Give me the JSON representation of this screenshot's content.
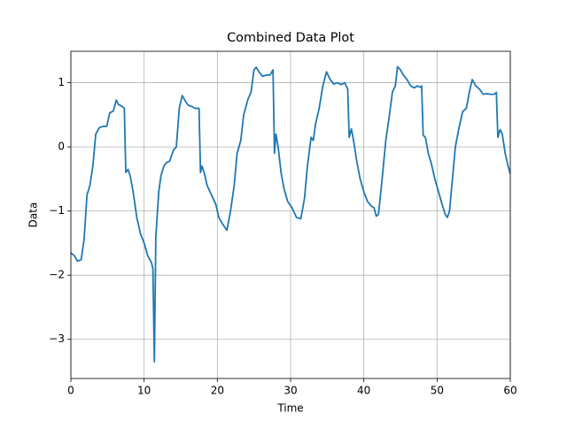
{
  "chart_data": {
    "type": "line",
    "title": "Combined Data Plot",
    "xlabel": "Time",
    "ylabel": "Data",
    "xlim": [
      0,
      60
    ],
    "ylim": [
      -3.61,
      1.49
    ],
    "xticks": [
      0,
      10,
      20,
      30,
      40,
      50,
      60
    ],
    "yticks": [
      {
        "value": -3,
        "label": "−3"
      },
      {
        "value": -2,
        "label": "−2"
      },
      {
        "value": -1,
        "label": "−1"
      },
      0,
      1
    ],
    "grid": true,
    "series": [
      {
        "color": "#1f77b4",
        "x": [
          0,
          0.5,
          0.9,
          1.4,
          1.8,
          2.2,
          2.6,
          3,
          3.4,
          3.9,
          4.4,
          4.9,
          5.3,
          5.8,
          6.2,
          6.5,
          7,
          7.3,
          7.5,
          7.8,
          8.1,
          8.5,
          9,
          9.5,
          10,
          10.5,
          11,
          11.2,
          11.4,
          11.6,
          12,
          12.3,
          12.7,
          13,
          13.5,
          14,
          14.4,
          14.8,
          15.2,
          15.6,
          16,
          16.5,
          17,
          17.5,
          17.7,
          17.9,
          18.2,
          18.6,
          19.2,
          19.8,
          20.2,
          20.7,
          21.3,
          21.8,
          22.3,
          22.7,
          23.2,
          23.6,
          24.2,
          24.6,
          25,
          25.3,
          25.8,
          26.2,
          26.7,
          27.2,
          27.6,
          27.8,
          28,
          28.3,
          28.7,
          29.1,
          29.6,
          30.2,
          30.8,
          31.4,
          31.9,
          32.3,
          32.8,
          33.1,
          33.4,
          33.9,
          34.4,
          34.9,
          35.4,
          35.9,
          36.4,
          36.9,
          37.4,
          37.8,
          38,
          38.3,
          38.6,
          39,
          39.5,
          40,
          40.5,
          41,
          41.4,
          41.7,
          42,
          42.5,
          43,
          43.5,
          43.9,
          44.3,
          44.6,
          45,
          45.4,
          45.9,
          46.4,
          46.9,
          47.3,
          47.7,
          47.9,
          48.1,
          48.4,
          48.8,
          49.2,
          49.7,
          50.2,
          50.7,
          51.1,
          51.4,
          51.7,
          52.1,
          52.5,
          53,
          53.5,
          54,
          54.4,
          54.8,
          55.3,
          55.8,
          56.3,
          56.8,
          57.3,
          57.8,
          58.1,
          58.3,
          58.6,
          58.9,
          59.3,
          59.7,
          60
        ],
        "values": [
          -1.65,
          -1.7,
          -1.78,
          -1.76,
          -1.45,
          -0.75,
          -0.6,
          -0.3,
          0.2,
          0.3,
          0.32,
          0.32,
          0.53,
          0.56,
          0.73,
          0.66,
          0.63,
          0.6,
          -0.4,
          -0.35,
          -0.45,
          -0.7,
          -1.1,
          -1.35,
          -1.5,
          -1.7,
          -1.8,
          -1.9,
          -3.35,
          -1.4,
          -0.7,
          -0.45,
          -0.3,
          -0.25,
          -0.22,
          -0.05,
          0.0,
          0.6,
          0.8,
          0.72,
          0.65,
          0.63,
          0.6,
          0.6,
          -0.4,
          -0.3,
          -0.4,
          -0.6,
          -0.75,
          -0.9,
          -1.1,
          -1.2,
          -1.3,
          -1.0,
          -0.6,
          -0.1,
          0.1,
          0.5,
          0.75,
          0.85,
          1.2,
          1.24,
          1.15,
          1.1,
          1.12,
          1.12,
          1.2,
          -0.1,
          0.2,
          0.0,
          -0.4,
          -0.65,
          -0.85,
          -0.95,
          -1.1,
          -1.12,
          -0.8,
          -0.3,
          0.15,
          0.1,
          0.35,
          0.6,
          0.95,
          1.17,
          1.05,
          0.98,
          1.0,
          0.97,
          1.0,
          0.9,
          0.15,
          0.28,
          0.1,
          -0.2,
          -0.5,
          -0.7,
          -0.85,
          -0.92,
          -0.95,
          -1.08,
          -1.05,
          -0.5,
          0.1,
          0.5,
          0.85,
          0.95,
          1.25,
          1.2,
          1.12,
          1.05,
          0.95,
          0.92,
          0.95,
          0.93,
          0.95,
          0.18,
          0.15,
          -0.1,
          -0.25,
          -0.5,
          -0.7,
          -0.9,
          -1.05,
          -1.1,
          -1.0,
          -0.5,
          0.0,
          0.3,
          0.55,
          0.6,
          0.85,
          1.05,
          0.95,
          0.9,
          0.82,
          0.83,
          0.82,
          0.82,
          0.85,
          0.15,
          0.27,
          0.2,
          -0.1,
          -0.3,
          -0.42
        ]
      }
    ]
  }
}
